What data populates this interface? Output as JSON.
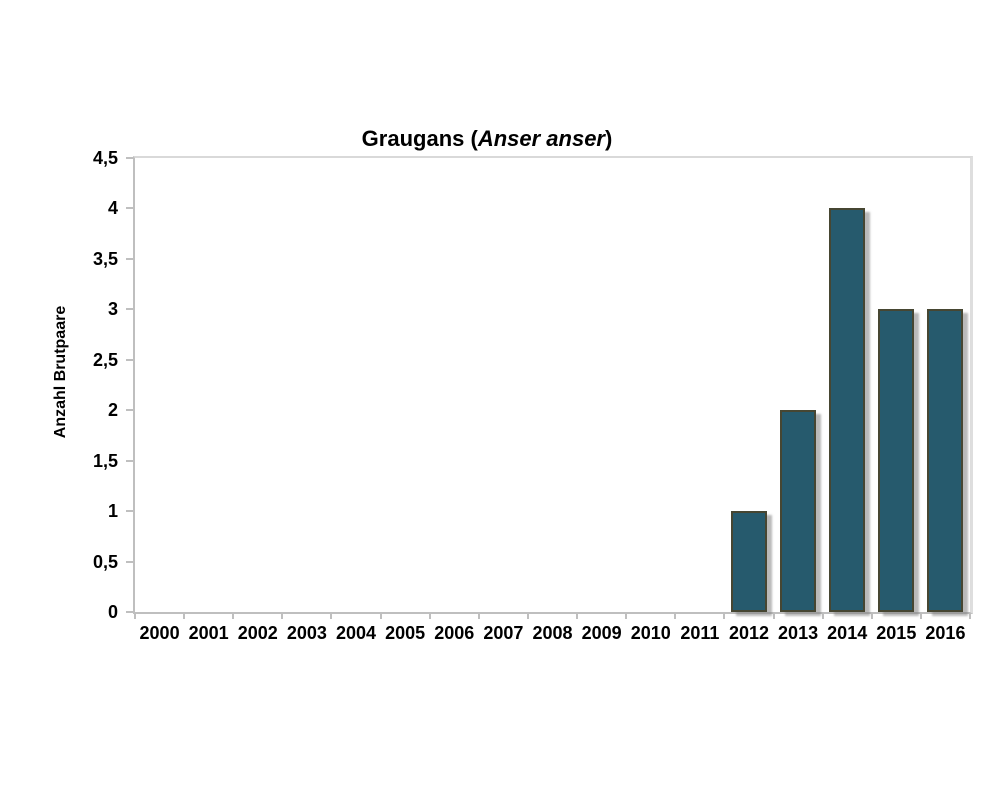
{
  "title": {
    "prefix": "Graugans (",
    "italic": "Anser anser",
    "suffix": ")"
  },
  "chart_data": {
    "type": "bar",
    "title": "Graugans (Anser anser)",
    "xlabel": "",
    "ylabel": "Anzahl Brutpaare",
    "categories": [
      "2000",
      "2001",
      "2002",
      "2003",
      "2004",
      "2005",
      "2006",
      "2007",
      "2008",
      "2009",
      "2010",
      "2011",
      "2012",
      "2013",
      "2014",
      "2015",
      "2016"
    ],
    "values": [
      0,
      0,
      0,
      0,
      0,
      0,
      0,
      0,
      0,
      0,
      0,
      0,
      1,
      2,
      4,
      3,
      3
    ],
    "ylim": [
      0,
      4.5
    ],
    "ytick_step": 0.5,
    "ytick_labels": [
      "0",
      "0,5",
      "1",
      "1,5",
      "2",
      "2,5",
      "3",
      "3,5",
      "4",
      "4,5"
    ],
    "decimal_separator": ",",
    "grid": false,
    "legend": false,
    "layout": "single series, bars only for 2012-2016, plot background white, no gridlines",
    "colors": {
      "bar_fill": "#265A6D",
      "bar_border": "#464632",
      "bar_shadow": "rgba(128,128,128,0.55)",
      "axis": "#bfbfbf",
      "text": "#000000",
      "background": "#ffffff"
    }
  }
}
